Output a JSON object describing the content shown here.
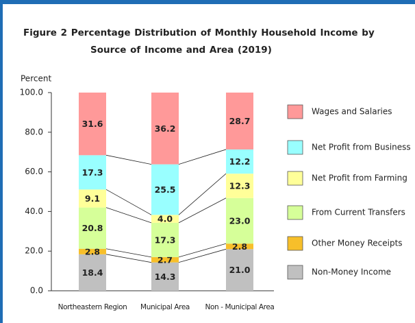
{
  "chart_data": {
    "type": "stacked_bar",
    "title": "Figure  2  Percentage Distribution of Monthly Household Income by Source of Income and Area (2019)",
    "y_label": "Percent",
    "categories": [
      "Northeastern  Region",
      "Municipal Area",
      "Non - Municipal  Area"
    ],
    "series": [
      {
        "name": "Non-Money Income",
        "color": "#c0c0c0",
        "values": [
          18.4,
          14.3,
          21.0
        ],
        "value_labels": [
          "18.4",
          "14.3",
          "21.0"
        ]
      },
      {
        "name": "Other Money Receipts",
        "color": "#f7bf2a",
        "values": [
          2.8,
          2.7,
          2.8
        ],
        "value_labels": [
          "2.8",
          "2.7",
          "2.8"
        ]
      },
      {
        "name": "From Current Transfers",
        "color": "#d6ff99",
        "values": [
          20.8,
          17.3,
          23.0
        ],
        "value_labels": [
          "20.8",
          "17.3",
          "23.0"
        ]
      },
      {
        "name": "Net Profit from Farming",
        "color": "#ffff99",
        "values": [
          9.1,
          4.0,
          12.3
        ],
        "value_labels": [
          "9.1",
          "4.0",
          "12.3"
        ]
      },
      {
        "name": "Net Profit from Business",
        "color": "#99ffff",
        "values": [
          17.3,
          25.5,
          12.2
        ],
        "value_labels": [
          "17.3",
          "25.5",
          "12.2"
        ]
      },
      {
        "name": "Wages and Salaries",
        "color": "#ff9999",
        "values": [
          31.6,
          36.2,
          28.7
        ],
        "value_labels": [
          "31.6",
          "36.2",
          "28.7"
        ]
      }
    ],
    "ylim": [
      0,
      100
    ],
    "yticks": [
      {
        "value": 0,
        "label": "0.0"
      },
      {
        "value": 20,
        "label": "20.0"
      },
      {
        "value": 40,
        "label": "40.0"
      },
      {
        "value": 60,
        "label": "60.0"
      },
      {
        "value": 80,
        "label": "80.0"
      },
      {
        "value": 100,
        "label": "100.0"
      }
    ],
    "legend": "right"
  }
}
